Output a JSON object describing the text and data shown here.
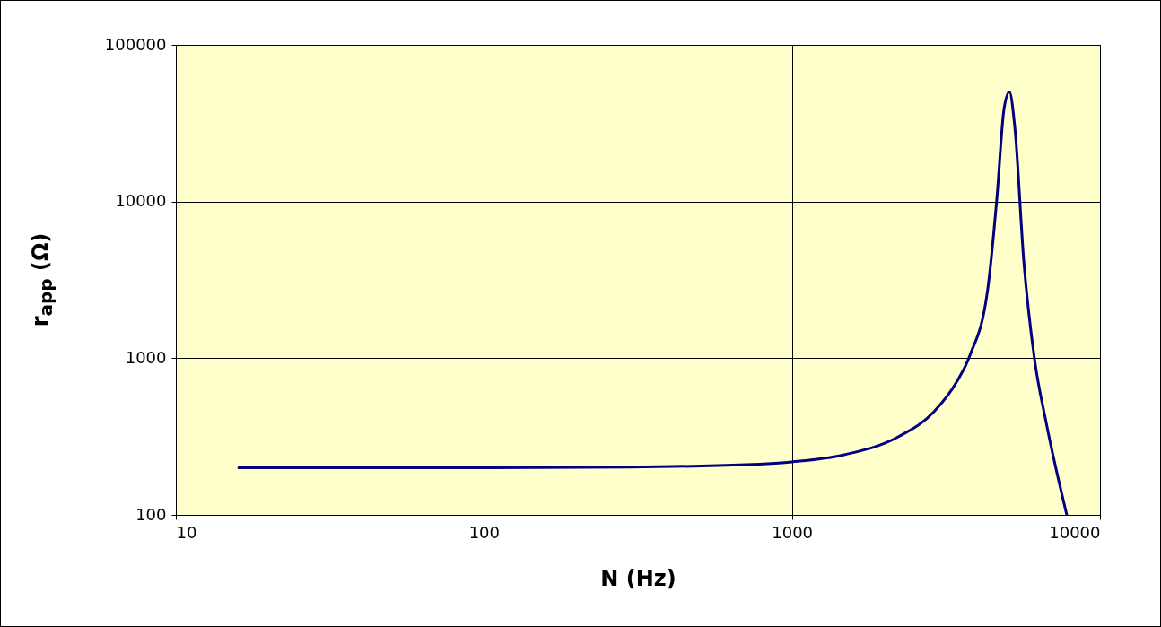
{
  "chart_data": {
    "type": "line",
    "xlabel": "N  (Hz)",
    "ylabel": "r$_{app}$  (Ω)",
    "log": "xy",
    "grid": true,
    "xlim": [
      10,
      10000
    ],
    "xticks": [
      10,
      100,
      1000,
      10000
    ],
    "ylim": [
      100,
      100000
    ],
    "yticks": [
      100,
      1000,
      10000,
      100000
    ],
    "x": [
      16,
      100,
      296,
      708,
      1000,
      1479,
      2213,
      2891,
      3422,
      3784,
      4326,
      4627,
      4883,
      5082,
      5288,
      5657,
      6134,
      6687,
      7800
    ],
    "series": [
      {
        "color": "#000080",
        "values": [
          200,
          200,
          202,
          209,
          218,
          242,
          315,
          455,
          703,
          1045,
          2805,
          10500,
          39200,
          50000,
          30100,
          4170,
          977,
          389,
          100
        ]
      }
    ]
  }
}
